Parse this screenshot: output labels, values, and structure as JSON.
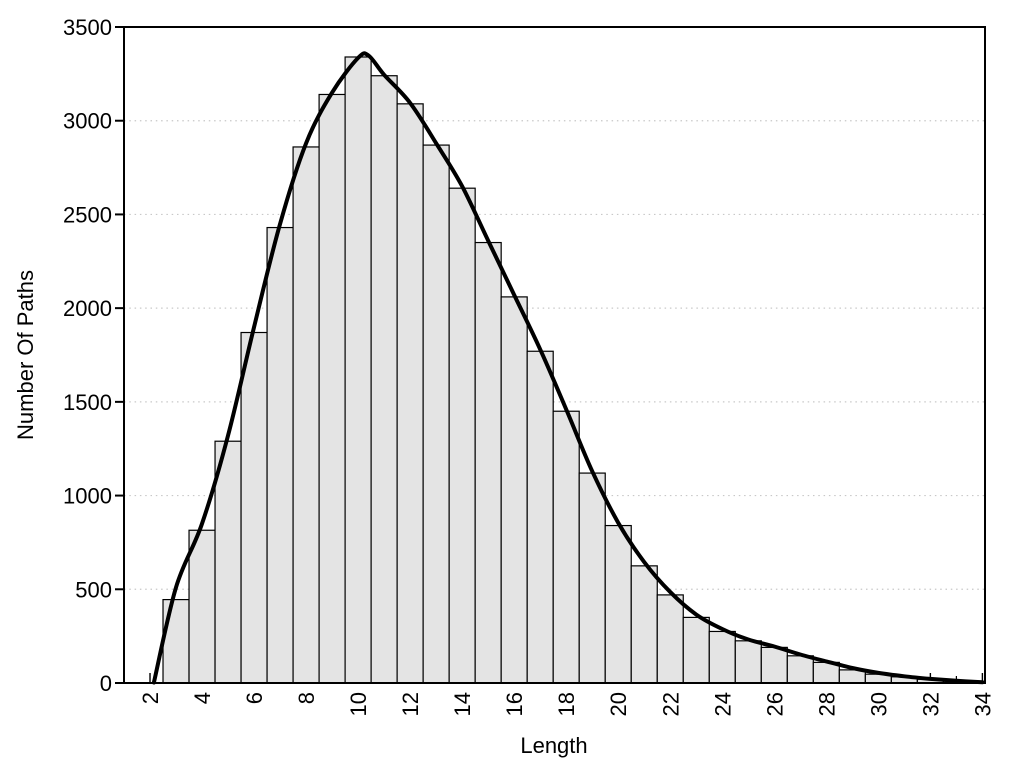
{
  "chart_data": {
    "type": "bar",
    "title": "",
    "xlabel": "Length",
    "ylabel": "Number Of Paths",
    "xlim": [
      1,
      34.1
    ],
    "ylim": [
      0,
      3500
    ],
    "grid": "horizontal-dotted",
    "legend": "none",
    "x_major_ticks": [
      2,
      4,
      6,
      8,
      10,
      12,
      14,
      16,
      18,
      20,
      22,
      24,
      26,
      28,
      30,
      32,
      34
    ],
    "x_minor_ticks": [
      3,
      5,
      7,
      9,
      11,
      13,
      15,
      17,
      19,
      21,
      23,
      25,
      27,
      29,
      31,
      33
    ],
    "y_ticks": [
      0,
      500,
      1000,
      1500,
      2000,
      2500,
      3000,
      3500
    ],
    "categories": [
      3,
      4,
      5,
      6,
      7,
      8,
      9,
      10,
      11,
      12,
      13,
      14,
      15,
      16,
      17,
      18,
      19,
      20,
      21,
      22,
      23,
      24,
      25,
      26,
      27,
      28,
      29,
      30,
      31,
      32,
      33
    ],
    "values": [
      445,
      815,
      1290,
      1870,
      2430,
      2860,
      3140,
      3340,
      3240,
      3090,
      2870,
      2640,
      2350,
      2060,
      1770,
      1450,
      1120,
      840,
      625,
      470,
      350,
      275,
      225,
      190,
      145,
      110,
      70,
      47,
      33,
      20,
      10
    ],
    "bar_width": 1,
    "series": [
      {
        "name": "fitted-curve",
        "type": "line",
        "points": [
          [
            2.15,
            0
          ],
          [
            3,
            510
          ],
          [
            4,
            850
          ],
          [
            5,
            1320
          ],
          [
            6,
            1900
          ],
          [
            7,
            2450
          ],
          [
            8,
            2880
          ],
          [
            9,
            3150
          ],
          [
            10,
            3335
          ],
          [
            10.4,
            3348
          ],
          [
            11,
            3245
          ],
          [
            12,
            3095
          ],
          [
            13,
            2880
          ],
          [
            14,
            2650
          ],
          [
            15,
            2360
          ],
          [
            16,
            2070
          ],
          [
            17,
            1780
          ],
          [
            18,
            1460
          ],
          [
            19,
            1130
          ],
          [
            20,
            855
          ],
          [
            21,
            645
          ],
          [
            22,
            485
          ],
          [
            23,
            365
          ],
          [
            24,
            288
          ],
          [
            25,
            232
          ],
          [
            26,
            195
          ],
          [
            27,
            152
          ],
          [
            28,
            115
          ],
          [
            29,
            80
          ],
          [
            30,
            54
          ],
          [
            31,
            36
          ],
          [
            32,
            22
          ],
          [
            33,
            12
          ],
          [
            34,
            4
          ]
        ]
      }
    ],
    "colors": {
      "bar_fill": "#e4e4e4",
      "bar_edge": "#000000",
      "curve": "#000000",
      "frame": "#000000",
      "gridline": "#c8c8c8",
      "text": "#000000",
      "background": "#ffffff"
    }
  }
}
